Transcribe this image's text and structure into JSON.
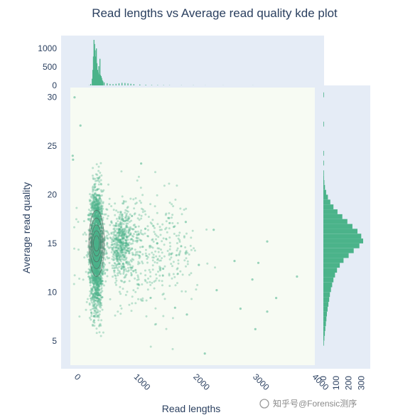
{
  "title": "Read lengths vs Average read quality kde plot",
  "watermark": "知乎号@Forensic测序",
  "colors": {
    "plot_bg": "#e5ecf6",
    "main_bg": "#f7fbf3",
    "marker": "#4bb38a",
    "contour": "#555555"
  },
  "chart_data": {
    "type": "scatter",
    "title": "Read lengths vs Average read quality kde plot",
    "xlabel": "Read lengths",
    "ylabel": "Average read quality",
    "xlim": [
      -60,
      4050
    ],
    "ylim": [
      2.5,
      31.0
    ],
    "x_ticks": [
      "0",
      "1000",
      "2000",
      "3000",
      "4000"
    ],
    "x_tick_values": [
      0,
      1000,
      2000,
      3000,
      4000
    ],
    "y_ticks": [
      "5",
      "10",
      "15",
      "20",
      "25",
      "30"
    ],
    "y_tick_values": [
      5,
      10,
      15,
      20,
      25,
      30
    ],
    "top_histogram": {
      "ylim": [
        0,
        1250
      ],
      "ticks": [
        "0",
        "500",
        "1000"
      ],
      "tick_values": [
        0,
        500,
        1000
      ],
      "bins": [
        [
          250,
          5
        ],
        [
          275,
          40
        ],
        [
          300,
          180
        ],
        [
          310,
          420
        ],
        [
          320,
          780
        ],
        [
          330,
          1230
        ],
        [
          340,
          1120
        ],
        [
          350,
          950
        ],
        [
          360,
          780
        ],
        [
          370,
          1000
        ],
        [
          380,
          600
        ],
        [
          390,
          420
        ],
        [
          400,
          350
        ],
        [
          410,
          520
        ],
        [
          420,
          300
        ],
        [
          430,
          720
        ],
        [
          440,
          280
        ],
        [
          450,
          250
        ],
        [
          460,
          200
        ],
        [
          470,
          140
        ],
        [
          480,
          110
        ],
        [
          500,
          80
        ],
        [
          550,
          60
        ],
        [
          600,
          40
        ],
        [
          650,
          35
        ],
        [
          700,
          45
        ],
        [
          750,
          55
        ],
        [
          800,
          70
        ],
        [
          850,
          65
        ],
        [
          900,
          55
        ],
        [
          950,
          45
        ],
        [
          1000,
          35
        ],
        [
          1100,
          25
        ],
        [
          1200,
          18
        ],
        [
          1300,
          12
        ],
        [
          1400,
          9
        ],
        [
          1500,
          7
        ],
        [
          1600,
          5
        ],
        [
          1800,
          4
        ],
        [
          2000,
          3
        ],
        [
          2200,
          2
        ],
        [
          2500,
          2
        ],
        [
          3000,
          1
        ]
      ]
    },
    "right_histogram": {
      "xlim": [
        0,
        360
      ],
      "ticks": [
        "0",
        "100",
        "200",
        "300"
      ],
      "tick_values": [
        0,
        100,
        200,
        300
      ],
      "bins": [
        [
          4.5,
          4
        ],
        [
          5,
          8
        ],
        [
          5.5,
          12
        ],
        [
          6,
          16
        ],
        [
          6.5,
          20
        ],
        [
          7,
          24
        ],
        [
          7.5,
          28
        ],
        [
          8,
          34
        ],
        [
          8.5,
          40
        ],
        [
          9,
          46
        ],
        [
          9.5,
          52
        ],
        [
          10,
          60
        ],
        [
          10.5,
          70
        ],
        [
          11,
          80
        ],
        [
          11.5,
          92
        ],
        [
          12,
          108
        ],
        [
          12.5,
          130
        ],
        [
          13,
          160
        ],
        [
          13.5,
          200
        ],
        [
          14,
          240
        ],
        [
          14.5,
          285
        ],
        [
          15,
          315
        ],
        [
          15.5,
          300
        ],
        [
          16,
          270
        ],
        [
          16.5,
          230
        ],
        [
          17,
          190
        ],
        [
          17.5,
          150
        ],
        [
          18,
          112
        ],
        [
          18.5,
          80
        ],
        [
          19,
          55
        ],
        [
          19.5,
          36
        ],
        [
          20,
          22
        ],
        [
          20.5,
          13
        ],
        [
          21,
          8
        ],
        [
          21.5,
          5
        ],
        [
          22,
          3
        ],
        [
          23,
          2
        ],
        [
          24,
          1
        ],
        [
          27,
          1
        ],
        [
          30,
          1
        ]
      ]
    },
    "scatter_outliers": [
      [
        10,
        30.0
      ],
      [
        110,
        27.1
      ],
      [
        -20,
        24.0
      ],
      [
        -15,
        23.6
      ],
      [
        1130,
        23.2
      ],
      [
        1600,
        17.6
      ],
      [
        1880,
        17.2
      ],
      [
        2350,
        16.4
      ],
      [
        3250,
        15.2
      ],
      [
        2700,
        13.2
      ],
      [
        3100,
        13.0
      ],
      [
        3000,
        11.3
      ],
      [
        3750,
        11.6
      ],
      [
        3400,
        9.4
      ],
      [
        3250,
        8.0
      ],
      [
        2800,
        8.3
      ],
      [
        3050,
        6.2
      ],
      [
        2200,
        3.7
      ],
      [
        1200,
        16.5
      ],
      [
        1400,
        15.0
      ],
      [
        1500,
        12.4
      ],
      [
        2100,
        12.8
      ],
      [
        2400,
        10.2
      ],
      [
        1700,
        8.4
      ],
      [
        1900,
        7.7
      ]
    ],
    "clusters": [
      {
        "x_mean": 380,
        "x_sd": 55,
        "y_mean": 14.5,
        "y_sd": 3.0,
        "n": 2400
      },
      {
        "x_mean": 800,
        "x_sd": 110,
        "y_mean": 15.0,
        "y_sd": 1.6,
        "n": 500
      },
      {
        "x_mean": 1200,
        "x_sd": 450,
        "y_mean": 14.0,
        "y_sd": 2.8,
        "n": 450
      }
    ],
    "contours": [
      {
        "cx": 380,
        "cy": 15.0,
        "rx": 130,
        "ry": 3.4
      },
      {
        "cx": 380,
        "cy": 15.0,
        "rx": 110,
        "ry": 2.6
      },
      {
        "cx": 380,
        "cy": 15.0,
        "rx": 90,
        "ry": 1.9
      },
      {
        "cx": 380,
        "cy": 15.0,
        "rx": 70,
        "ry": 1.3
      },
      {
        "cx": 380,
        "cy": 15.0,
        "rx": 50,
        "ry": 0.8
      }
    ]
  }
}
